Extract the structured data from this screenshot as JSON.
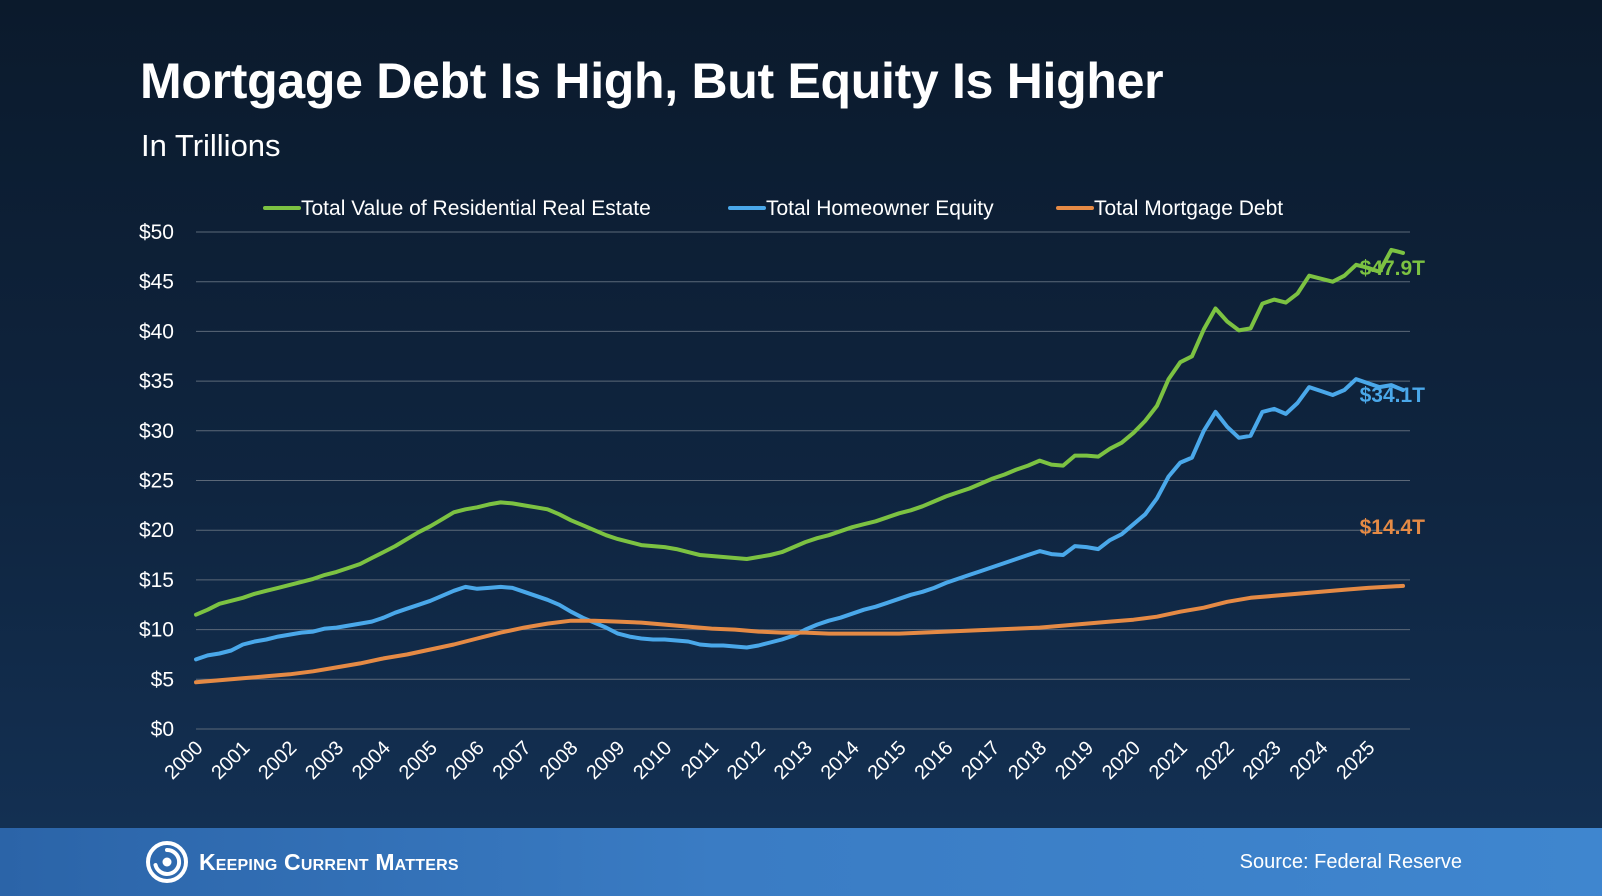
{
  "header": {
    "title": "Mortgage Debt Is High, But Equity Is Higher",
    "subtitle": "In Trillions"
  },
  "footer": {
    "brand": "Keeping Current Matters",
    "source": "Source: Federal Reserve"
  },
  "colors": {
    "green": "#7cc242",
    "blue": "#4aa8ea",
    "orange": "#e58a45",
    "grid": "#5b6878"
  },
  "chart_data": {
    "type": "line",
    "title": "Mortgage Debt Is High, But Equity Is Higher",
    "subtitle": "In Trillions",
    "xlabel": "",
    "ylabel": "",
    "ylim": [
      0,
      50
    ],
    "xlim": [
      2000,
      2025.9
    ],
    "grid": true,
    "legend_position": "top",
    "y_ticks": [
      "$0",
      "$5",
      "$10",
      "$15",
      "$20",
      "$25",
      "$30",
      "$35",
      "$40",
      "$45",
      "$50"
    ],
    "x_ticks": [
      "2000",
      "2001",
      "2002",
      "2003",
      "2004",
      "2005",
      "2006",
      "2007",
      "2008",
      "2009",
      "2010",
      "2011",
      "2012",
      "2013",
      "2014",
      "2015",
      "2016",
      "2017",
      "2018",
      "2019",
      "2020",
      "2021",
      "2022",
      "2023",
      "2024",
      "2025"
    ],
    "series": [
      {
        "name": "Total Value of Residential Real Estate",
        "color": "#7cc242",
        "end_label": "$47.9T",
        "points": [
          [
            2000.0,
            11.5
          ],
          [
            2000.25,
            12.0
          ],
          [
            2000.5,
            12.6
          ],
          [
            2000.75,
            12.9
          ],
          [
            2001.0,
            13.2
          ],
          [
            2001.25,
            13.6
          ],
          [
            2001.5,
            13.9
          ],
          [
            2001.75,
            14.2
          ],
          [
            2002.0,
            14.5
          ],
          [
            2002.25,
            14.8
          ],
          [
            2002.5,
            15.1
          ],
          [
            2002.75,
            15.5
          ],
          [
            2003.0,
            15.8
          ],
          [
            2003.25,
            16.2
          ],
          [
            2003.5,
            16.6
          ],
          [
            2003.75,
            17.2
          ],
          [
            2004.0,
            17.8
          ],
          [
            2004.25,
            18.4
          ],
          [
            2004.5,
            19.1
          ],
          [
            2004.75,
            19.8
          ],
          [
            2005.0,
            20.4
          ],
          [
            2005.25,
            21.1
          ],
          [
            2005.5,
            21.8
          ],
          [
            2005.75,
            22.1
          ],
          [
            2006.0,
            22.3
          ],
          [
            2006.25,
            22.6
          ],
          [
            2006.5,
            22.8
          ],
          [
            2006.75,
            22.7
          ],
          [
            2007.0,
            22.5
          ],
          [
            2007.25,
            22.3
          ],
          [
            2007.5,
            22.1
          ],
          [
            2007.75,
            21.6
          ],
          [
            2008.0,
            21.0
          ],
          [
            2008.25,
            20.5
          ],
          [
            2008.5,
            20.0
          ],
          [
            2008.75,
            19.5
          ],
          [
            2009.0,
            19.1
          ],
          [
            2009.25,
            18.8
          ],
          [
            2009.5,
            18.5
          ],
          [
            2009.75,
            18.4
          ],
          [
            2010.0,
            18.3
          ],
          [
            2010.25,
            18.1
          ],
          [
            2010.5,
            17.8
          ],
          [
            2010.75,
            17.5
          ],
          [
            2011.0,
            17.4
          ],
          [
            2011.25,
            17.3
          ],
          [
            2011.5,
            17.2
          ],
          [
            2011.75,
            17.1
          ],
          [
            2012.0,
            17.3
          ],
          [
            2012.25,
            17.5
          ],
          [
            2012.5,
            17.8
          ],
          [
            2012.75,
            18.3
          ],
          [
            2013.0,
            18.8
          ],
          [
            2013.25,
            19.2
          ],
          [
            2013.5,
            19.5
          ],
          [
            2013.75,
            19.9
          ],
          [
            2014.0,
            20.3
          ],
          [
            2014.25,
            20.6
          ],
          [
            2014.5,
            20.9
          ],
          [
            2014.75,
            21.3
          ],
          [
            2015.0,
            21.7
          ],
          [
            2015.25,
            22.0
          ],
          [
            2015.5,
            22.4
          ],
          [
            2015.75,
            22.9
          ],
          [
            2016.0,
            23.4
          ],
          [
            2016.25,
            23.8
          ],
          [
            2016.5,
            24.2
          ],
          [
            2016.75,
            24.7
          ],
          [
            2017.0,
            25.2
          ],
          [
            2017.25,
            25.6
          ],
          [
            2017.5,
            26.1
          ],
          [
            2017.75,
            26.5
          ],
          [
            2018.0,
            27.0
          ],
          [
            2018.25,
            26.6
          ],
          [
            2018.5,
            26.5
          ],
          [
            2018.75,
            27.5
          ],
          [
            2019.0,
            27.5
          ],
          [
            2019.25,
            27.4
          ],
          [
            2019.5,
            28.2
          ],
          [
            2019.75,
            28.8
          ],
          [
            2020.0,
            29.8
          ],
          [
            2020.25,
            31.0
          ],
          [
            2020.5,
            32.5
          ],
          [
            2020.75,
            35.2
          ],
          [
            2021.0,
            36.9
          ],
          [
            2021.25,
            37.5
          ],
          [
            2021.5,
            40.2
          ],
          [
            2021.75,
            42.3
          ],
          [
            2022.0,
            41.0
          ],
          [
            2022.25,
            40.1
          ],
          [
            2022.5,
            40.3
          ],
          [
            2022.75,
            42.8
          ],
          [
            2023.0,
            43.2
          ],
          [
            2023.25,
            42.9
          ],
          [
            2023.5,
            43.8
          ],
          [
            2023.75,
            45.6
          ],
          [
            2024.0,
            45.3
          ],
          [
            2024.25,
            45.0
          ],
          [
            2024.5,
            45.6
          ],
          [
            2024.75,
            46.7
          ],
          [
            2025.0,
            46.4
          ],
          [
            2025.25,
            46.0
          ],
          [
            2025.5,
            48.2
          ],
          [
            2025.75,
            47.9
          ]
        ]
      },
      {
        "name": "Total Homeowner Equity",
        "color": "#4aa8ea",
        "end_label": "$34.1T",
        "points": [
          [
            2000.0,
            7.0
          ],
          [
            2000.25,
            7.4
          ],
          [
            2000.5,
            7.6
          ],
          [
            2000.75,
            7.9
          ],
          [
            2001.0,
            8.5
          ],
          [
            2001.25,
            8.8
          ],
          [
            2001.5,
            9.0
          ],
          [
            2001.75,
            9.3
          ],
          [
            2002.0,
            9.5
          ],
          [
            2002.25,
            9.7
          ],
          [
            2002.5,
            9.8
          ],
          [
            2002.75,
            10.1
          ],
          [
            2003.0,
            10.2
          ],
          [
            2003.25,
            10.4
          ],
          [
            2003.5,
            10.6
          ],
          [
            2003.75,
            10.8
          ],
          [
            2004.0,
            11.2
          ],
          [
            2004.25,
            11.7
          ],
          [
            2004.5,
            12.1
          ],
          [
            2004.75,
            12.5
          ],
          [
            2005.0,
            12.9
          ],
          [
            2005.25,
            13.4
          ],
          [
            2005.5,
            13.9
          ],
          [
            2005.75,
            14.3
          ],
          [
            2006.0,
            14.1
          ],
          [
            2006.25,
            14.2
          ],
          [
            2006.5,
            14.3
          ],
          [
            2006.75,
            14.2
          ],
          [
            2007.0,
            13.8
          ],
          [
            2007.25,
            13.4
          ],
          [
            2007.5,
            13.0
          ],
          [
            2007.75,
            12.5
          ],
          [
            2008.0,
            11.8
          ],
          [
            2008.25,
            11.2
          ],
          [
            2008.5,
            10.7
          ],
          [
            2008.75,
            10.2
          ],
          [
            2009.0,
            9.6
          ],
          [
            2009.25,
            9.3
          ],
          [
            2009.5,
            9.1
          ],
          [
            2009.75,
            9.0
          ],
          [
            2010.0,
            9.0
          ],
          [
            2010.25,
            8.9
          ],
          [
            2010.5,
            8.8
          ],
          [
            2010.75,
            8.5
          ],
          [
            2011.0,
            8.4
          ],
          [
            2011.25,
            8.4
          ],
          [
            2011.5,
            8.3
          ],
          [
            2011.75,
            8.2
          ],
          [
            2012.0,
            8.4
          ],
          [
            2012.25,
            8.7
          ],
          [
            2012.5,
            9.0
          ],
          [
            2012.75,
            9.4
          ],
          [
            2013.0,
            10.0
          ],
          [
            2013.25,
            10.5
          ],
          [
            2013.5,
            10.9
          ],
          [
            2013.75,
            11.2
          ],
          [
            2014.0,
            11.6
          ],
          [
            2014.25,
            12.0
          ],
          [
            2014.5,
            12.3
          ],
          [
            2014.75,
            12.7
          ],
          [
            2015.0,
            13.1
          ],
          [
            2015.25,
            13.5
          ],
          [
            2015.5,
            13.8
          ],
          [
            2015.75,
            14.2
          ],
          [
            2016.0,
            14.7
          ],
          [
            2016.25,
            15.1
          ],
          [
            2016.5,
            15.5
          ],
          [
            2016.75,
            15.9
          ],
          [
            2017.0,
            16.3
          ],
          [
            2017.25,
            16.7
          ],
          [
            2017.5,
            17.1
          ],
          [
            2017.75,
            17.5
          ],
          [
            2018.0,
            17.9
          ],
          [
            2018.25,
            17.6
          ],
          [
            2018.5,
            17.5
          ],
          [
            2018.75,
            18.4
          ],
          [
            2019.0,
            18.3
          ],
          [
            2019.25,
            18.1
          ],
          [
            2019.5,
            19.0
          ],
          [
            2019.75,
            19.6
          ],
          [
            2020.0,
            20.6
          ],
          [
            2020.25,
            21.6
          ],
          [
            2020.5,
            23.2
          ],
          [
            2020.75,
            25.4
          ],
          [
            2021.0,
            26.8
          ],
          [
            2021.25,
            27.3
          ],
          [
            2021.5,
            30.0
          ],
          [
            2021.75,
            31.9
          ],
          [
            2022.0,
            30.4
          ],
          [
            2022.25,
            29.3
          ],
          [
            2022.5,
            29.5
          ],
          [
            2022.75,
            31.9
          ],
          [
            2023.0,
            32.2
          ],
          [
            2023.25,
            31.7
          ],
          [
            2023.5,
            32.8
          ],
          [
            2023.75,
            34.4
          ],
          [
            2024.0,
            34.0
          ],
          [
            2024.25,
            33.6
          ],
          [
            2024.5,
            34.1
          ],
          [
            2024.75,
            35.2
          ],
          [
            2025.0,
            34.8
          ],
          [
            2025.25,
            34.4
          ],
          [
            2025.5,
            34.6
          ],
          [
            2025.75,
            34.1
          ]
        ]
      },
      {
        "name": "Total Mortgage Debt",
        "color": "#e58a45",
        "end_label": "$14.4T",
        "points": [
          [
            2000.0,
            4.7
          ],
          [
            2000.5,
            4.9
          ],
          [
            2001.0,
            5.1
          ],
          [
            2001.5,
            5.3
          ],
          [
            2002.0,
            5.5
          ],
          [
            2002.5,
            5.8
          ],
          [
            2003.0,
            6.2
          ],
          [
            2003.5,
            6.6
          ],
          [
            2004.0,
            7.1
          ],
          [
            2004.5,
            7.5
          ],
          [
            2005.0,
            8.0
          ],
          [
            2005.5,
            8.5
          ],
          [
            2006.0,
            9.1
          ],
          [
            2006.5,
            9.7
          ],
          [
            2007.0,
            10.2
          ],
          [
            2007.5,
            10.6
          ],
          [
            2008.0,
            10.9
          ],
          [
            2008.5,
            10.9
          ],
          [
            2009.0,
            10.8
          ],
          [
            2009.5,
            10.7
          ],
          [
            2010.0,
            10.5
          ],
          [
            2010.5,
            10.3
          ],
          [
            2011.0,
            10.1
          ],
          [
            2011.5,
            10.0
          ],
          [
            2012.0,
            9.8
          ],
          [
            2012.5,
            9.7
          ],
          [
            2013.0,
            9.7
          ],
          [
            2013.5,
            9.6
          ],
          [
            2014.0,
            9.6
          ],
          [
            2014.5,
            9.6
          ],
          [
            2015.0,
            9.6
          ],
          [
            2015.5,
            9.7
          ],
          [
            2016.0,
            9.8
          ],
          [
            2016.5,
            9.9
          ],
          [
            2017.0,
            10.0
          ],
          [
            2017.5,
            10.1
          ],
          [
            2018.0,
            10.2
          ],
          [
            2018.5,
            10.4
          ],
          [
            2019.0,
            10.6
          ],
          [
            2019.5,
            10.8
          ],
          [
            2020.0,
            11.0
          ],
          [
            2020.5,
            11.3
          ],
          [
            2021.0,
            11.8
          ],
          [
            2021.5,
            12.2
          ],
          [
            2022.0,
            12.8
          ],
          [
            2022.5,
            13.2
          ],
          [
            2023.0,
            13.4
          ],
          [
            2023.5,
            13.6
          ],
          [
            2024.0,
            13.8
          ],
          [
            2024.5,
            14.0
          ],
          [
            2025.0,
            14.2
          ],
          [
            2025.75,
            14.4
          ]
        ]
      }
    ]
  }
}
